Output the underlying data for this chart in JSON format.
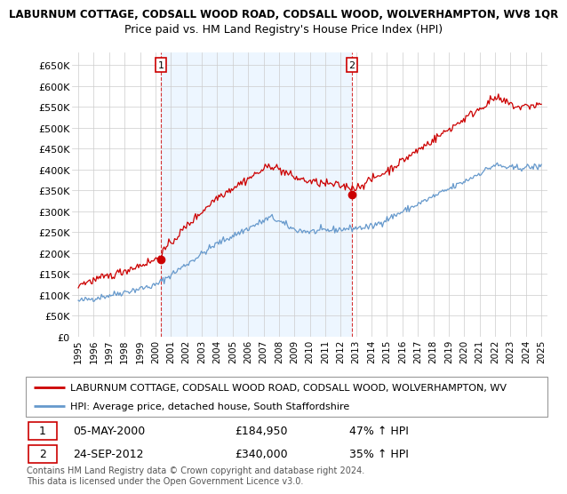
{
  "title_top": "LABURNUM COTTAGE, CODSALL WOOD ROAD, CODSALL WOOD, WOLVERHAMPTON, WV8 1QR",
  "title_sub": "Price paid vs. HM Land Registry's House Price Index (HPI)",
  "ylabel_ticks": [
    "£0",
    "£50K",
    "£100K",
    "£150K",
    "£200K",
    "£250K",
    "£300K",
    "£350K",
    "£400K",
    "£450K",
    "£500K",
    "£550K",
    "£600K",
    "£650K"
  ],
  "ytick_values": [
    0,
    50000,
    100000,
    150000,
    200000,
    250000,
    300000,
    350000,
    400000,
    450000,
    500000,
    550000,
    600000,
    650000
  ],
  "ylim": [
    0,
    680000
  ],
  "xlim_start": 1994.6,
  "xlim_end": 2025.4,
  "sale1_x": 2000.35,
  "sale1_y": 184950,
  "sale2_x": 2012.73,
  "sale2_y": 340000,
  "legend_red": "LABURNUM COTTAGE, CODSALL WOOD ROAD, CODSALL WOOD, WOLVERHAMPTON, WV",
  "legend_blue": "HPI: Average price, detached house, South Staffordshire",
  "annotation1_date": "05-MAY-2000",
  "annotation1_price": "£184,950",
  "annotation1_hpi": "47% ↑ HPI",
  "annotation2_date": "24-SEP-2012",
  "annotation2_price": "£340,000",
  "annotation2_hpi": "35% ↑ HPI",
  "footer": "Contains HM Land Registry data © Crown copyright and database right 2024.\nThis data is licensed under the Open Government Licence v3.0.",
  "red_color": "#cc0000",
  "blue_color": "#6699cc",
  "grid_color": "#cccccc",
  "bg_color": "#ffffff",
  "shade_color": "#ddeeff"
}
